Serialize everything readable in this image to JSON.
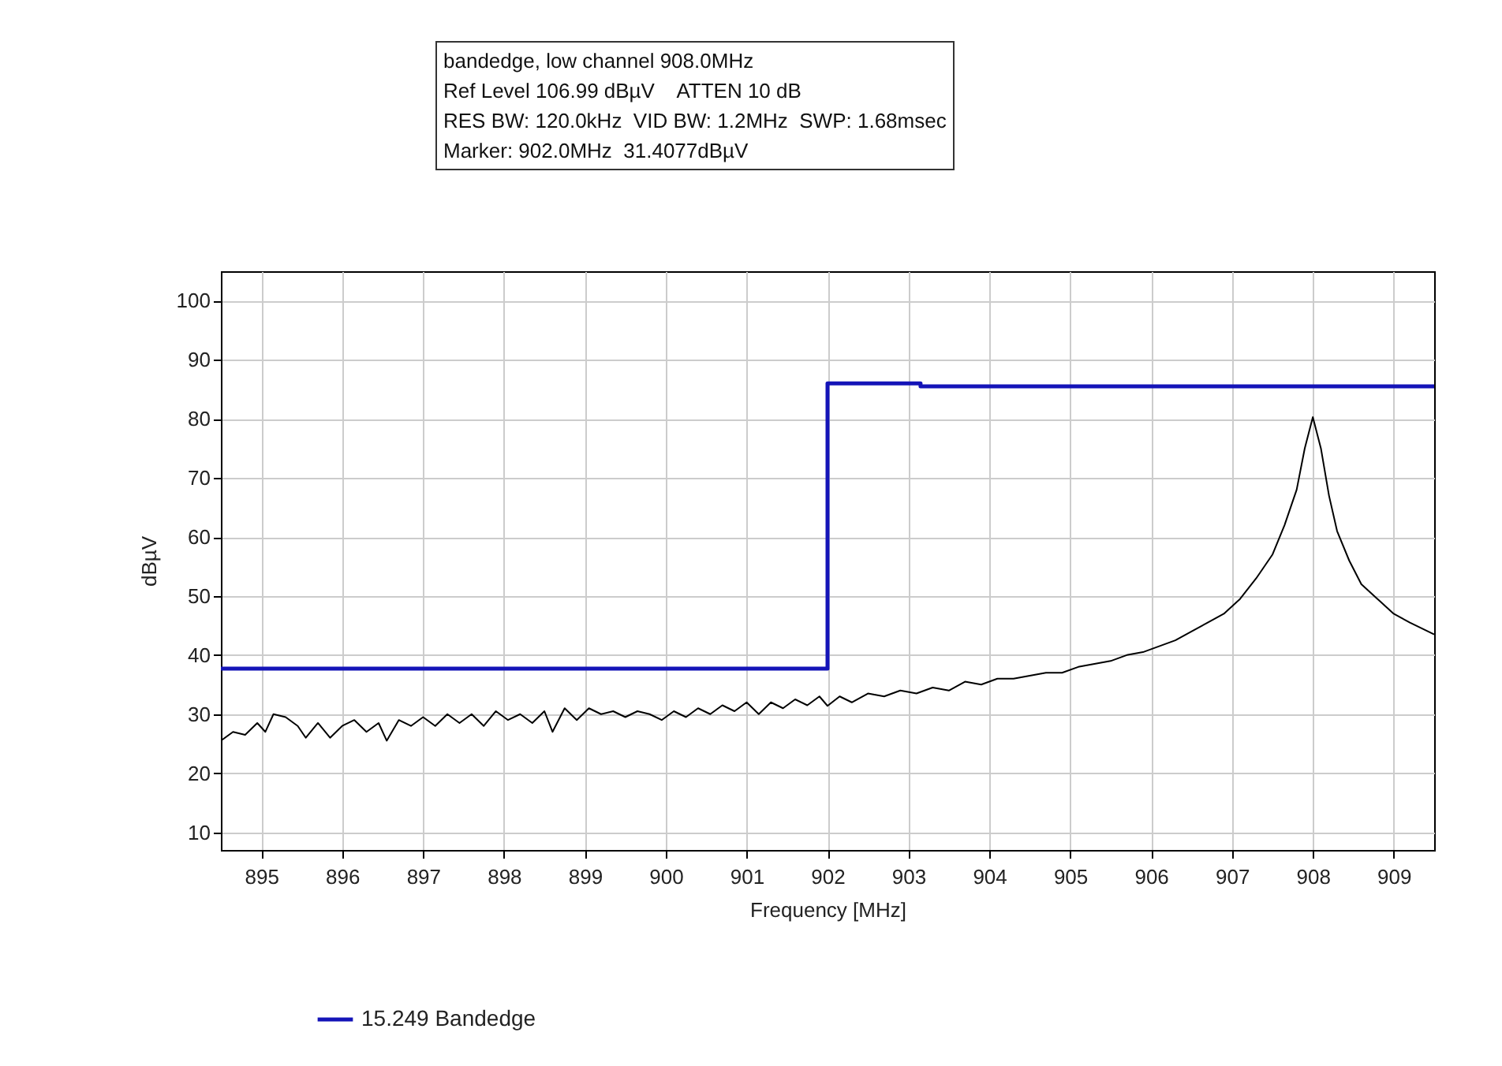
{
  "chart_data": {
    "type": "line",
    "title": "bandedge, low channel 908.0MHz",
    "annotations": [
      "Ref Level 106.99 dBµV    ATTEN 10 dB",
      "RES BW: 120.0kHz  VID BW: 1.2MHz  SWP: 1.68msec",
      "Marker: 902.0MHz  31.4077dBµV"
    ],
    "xlabel": "Frequency [MHz]",
    "ylabel": "dBµV",
    "xlim": [
      894.5,
      909.5
    ],
    "ylim": [
      7,
      105
    ],
    "xticks": [
      895,
      896,
      897,
      898,
      899,
      900,
      901,
      902,
      903,
      904,
      905,
      906,
      907,
      908,
      909
    ],
    "yticks": [
      10,
      20,
      30,
      40,
      50,
      60,
      70,
      80,
      90,
      100
    ],
    "grid": true,
    "legend": "bottom left",
    "marker": "none",
    "line_style": "solid",
    "series": [
      {
        "color": "#000000",
        "x": [
          894.5,
          894.65,
          894.8,
          894.95,
          895.05,
          895.15,
          895.3,
          895.45,
          895.55,
          895.7,
          895.85,
          896.0,
          896.15,
          896.3,
          896.45,
          896.55,
          896.7,
          896.85,
          897.0,
          897.15,
          897.3,
          897.45,
          897.6,
          897.75,
          897.9,
          898.05,
          898.2,
          898.35,
          898.5,
          898.6,
          898.75,
          898.9,
          899.05,
          899.2,
          899.35,
          899.5,
          899.65,
          899.8,
          899.95,
          900.1,
          900.25,
          900.4,
          900.55,
          900.7,
          900.85,
          901.0,
          901.15,
          901.3,
          901.45,
          901.6,
          901.75,
          901.9,
          902.0,
          902.15,
          902.3,
          902.5,
          902.7,
          902.9,
          903.1,
          903.3,
          903.5,
          903.7,
          903.9,
          904.1,
          904.3,
          904.5,
          904.7,
          904.9,
          905.1,
          905.3,
          905.5,
          905.7,
          905.9,
          906.1,
          906.3,
          906.5,
          906.7,
          906.9,
          907.1,
          907.3,
          907.5,
          907.65,
          907.8,
          907.9,
          908.0,
          908.1,
          908.2,
          908.3,
          908.45,
          908.6,
          908.8,
          909.0,
          909.2,
          909.35,
          909.5
        ],
        "values": [
          25.5,
          27,
          26.5,
          28.5,
          27,
          30,
          29.5,
          28,
          26,
          28.5,
          26,
          28,
          29,
          27,
          28.5,
          25.5,
          29,
          28,
          29.5,
          28,
          30,
          28.5,
          30,
          28,
          30.5,
          29,
          30,
          28.5,
          30.5,
          27,
          31,
          29,
          31,
          30,
          30.5,
          29.5,
          30.5,
          30,
          29,
          30.5,
          29.5,
          31,
          30,
          31.5,
          30.5,
          32,
          30,
          32,
          31,
          32.5,
          31.5,
          33,
          31.4,
          33,
          32,
          33.5,
          33,
          34,
          33.5,
          34.5,
          34,
          35.5,
          35,
          36,
          36,
          36.5,
          37,
          37,
          38,
          38.5,
          39,
          40,
          40.5,
          41.5,
          42.5,
          44,
          45.5,
          47,
          49.5,
          53,
          57,
          62,
          68,
          75,
          80.3,
          75,
          67,
          61,
          56,
          52,
          49.5,
          47,
          45.5,
          44.5,
          43.5
        ]
      },
      {
        "name": "15.249 Bandedge",
        "color": "#1414b8",
        "x": [
          894.5,
          902,
          902,
          903.15,
          903.15,
          909.5
        ],
        "values": [
          37.7,
          37.7,
          86,
          86,
          85.5,
          85.5
        ]
      }
    ]
  }
}
